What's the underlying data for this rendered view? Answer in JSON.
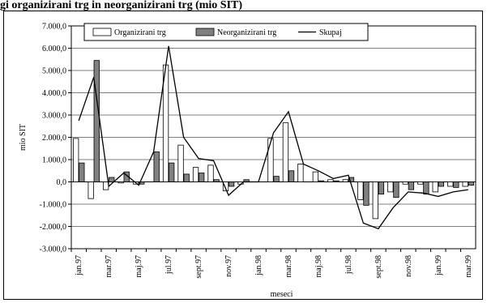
{
  "page": {
    "title": "gi organizirani trg in neorganizirani trg (mio SIT)"
  },
  "chart_data": {
    "type": "bar",
    "title": "gi organizirani trg in neorganizirani trg (mio SIT)",
    "xlabel": "meseci",
    "ylabel": "mio SIT",
    "ylim": [
      -3000,
      7000
    ],
    "yticks": [
      "7.000,0",
      "6.000,0",
      "5.000,0",
      "4.000,0",
      "3.000,0",
      "2.000,0",
      "1.000,0",
      "0,0",
      "-1.000,0",
      "-2.000,0",
      "-3.000,0"
    ],
    "ytick_values": [
      7000,
      6000,
      5000,
      4000,
      3000,
      2000,
      1000,
      0,
      -1000,
      -2000,
      -3000
    ],
    "grid": true,
    "legend_position": "top",
    "categories": [
      "jan.97",
      "feb.97",
      "mar.97",
      "apr.97",
      "maj.97",
      "jun.97",
      "jul.97",
      "avg.97",
      "sept.97",
      "okt.97",
      "nov.97",
      "dec.97",
      "jan.98",
      "feb.98",
      "mar.98",
      "apr.98",
      "maj.98",
      "jun.98",
      "jul.98",
      "avg.98",
      "sept.98",
      "okt.98",
      "nov.98",
      "dec.98",
      "jan.99",
      "feb.99",
      "mar.99"
    ],
    "tick_labels": [
      "jan.97",
      "mar.97",
      "maj.97",
      "jul.97",
      "sept.97",
      "nov.97",
      "jan.98",
      "mar.98",
      "maj.98",
      "jul.98",
      "sept.98",
      "nov.98",
      "jan.99",
      "mar.99"
    ],
    "series": [
      {
        "name": "Organizirani trg",
        "kind": "bar",
        "color": "#ffffff",
        "values": [
          1950,
          -750,
          -350,
          -50,
          -100,
          0,
          5250,
          1650,
          650,
          750,
          -400,
          -100,
          0,
          1950,
          2650,
          800,
          450,
          100,
          100,
          -800,
          -1650,
          -450,
          -100,
          -100,
          -450,
          -200,
          -200
        ]
      },
      {
        "name": "Neorganizirani trg",
        "kind": "bar",
        "color": "#808080",
        "values": [
          850,
          5450,
          200,
          450,
          -100,
          1350,
          850,
          350,
          400,
          100,
          -200,
          100,
          0,
          250,
          500,
          0,
          50,
          50,
          200,
          -1050,
          -550,
          -700,
          -350,
          -550,
          -200,
          -250,
          -150
        ]
      },
      {
        "name": "Skupaj",
        "kind": "line",
        "color": "#000000",
        "values": [
          2750,
          4700,
          -200,
          400,
          -150,
          1350,
          6100,
          2000,
          1050,
          950,
          -600,
          0,
          0,
          2200,
          3150,
          800,
          500,
          150,
          300,
          -1850,
          -2100,
          -1150,
          -450,
          -500,
          -650,
          -450,
          -350
        ]
      }
    ]
  }
}
